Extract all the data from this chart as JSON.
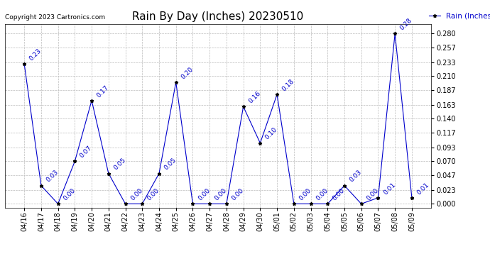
{
  "title": "Rain By Day (Inches) 20230510",
  "copyright_text": "Copyright 2023 Cartronics.com",
  "legend_label": "Rain (Inches)",
  "dates": [
    "04/16",
    "04/17",
    "04/18",
    "04/19",
    "04/20",
    "04/21",
    "04/22",
    "04/23",
    "04/24",
    "04/25",
    "04/26",
    "04/27",
    "04/28",
    "04/29",
    "04/30",
    "05/01",
    "05/02",
    "05/03",
    "05/04",
    "05/05",
    "05/06",
    "05/07",
    "05/08",
    "05/09"
  ],
  "values": [
    0.23,
    0.03,
    0.0,
    0.07,
    0.17,
    0.05,
    0.0,
    0.0,
    0.05,
    0.2,
    0.0,
    0.0,
    0.0,
    0.16,
    0.1,
    0.18,
    0.0,
    0.0,
    0.0,
    0.03,
    0.0,
    0.01,
    0.28,
    0.01
  ],
  "line_color": "#0000cc",
  "marker_color": "#000000",
  "grid_color": "#bbbbbb",
  "bg_color": "#ffffff",
  "title_fontsize": 11,
  "annot_fontsize": 6.5,
  "tick_fontsize": 7,
  "copyright_fontsize": 6.5,
  "legend_fontsize": 7.5,
  "ylim_min": -0.006,
  "ylim_max": 0.296,
  "yticks": [
    0.0,
    0.023,
    0.047,
    0.07,
    0.093,
    0.117,
    0.14,
    0.163,
    0.187,
    0.21,
    0.233,
    0.257,
    0.28
  ]
}
